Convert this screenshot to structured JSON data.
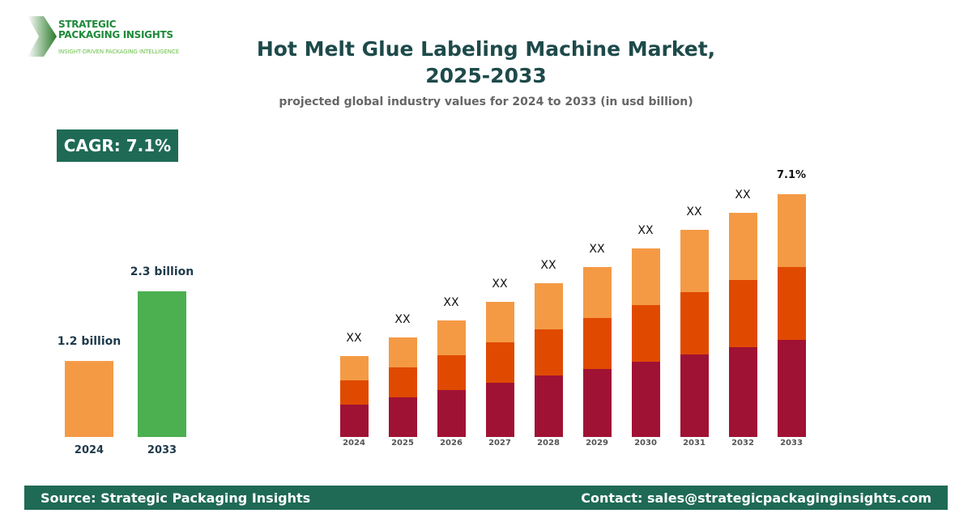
{
  "logo": {
    "line1": "STRATEGIC",
    "line2": "PACKAGING INSIGHTS",
    "tagline": "INSIGHT-DRIVEN PACKAGING INTELLIGENCE"
  },
  "header": {
    "title_line1": "Hot Melt Glue Labeling Machine Market,",
    "title_line2": "2025-2033",
    "subtitle": "projected global industry values for 2024 to 2033 (in usd billion)"
  },
  "cagr": "CAGR: 7.1%",
  "footer": {
    "source": "Source: Strategic Packaging Insights",
    "contact": "Contact: sales@strategicpackaginginsights.com"
  },
  "chart_data": [
    {
      "type": "bar",
      "categories": [
        "2024",
        "2033"
      ],
      "values": [
        1.2,
        2.3
      ],
      "data_labels": [
        "1.2 billion",
        "2.3 billion"
      ],
      "colors": [
        "#f49a45",
        "#4caf50"
      ],
      "ylim": [
        0,
        2.3
      ]
    },
    {
      "type": "bar",
      "stacked": true,
      "categories": [
        "2024",
        "2025",
        "2026",
        "2027",
        "2028",
        "2029",
        "2030",
        "2031",
        "2032",
        "2033"
      ],
      "series": [
        {
          "color": "#a01234",
          "values": [
            40,
            49,
            58,
            67,
            76,
            84,
            93,
            102,
            111,
            120
          ]
        },
        {
          "color": "#e04a00",
          "values": [
            30,
            37,
            43,
            50,
            57,
            63,
            70,
            77,
            83,
            90
          ]
        },
        {
          "color": "#f49a45",
          "values": [
            30,
            37,
            43,
            50,
            57,
            63,
            70,
            77,
            83,
            90
          ]
        }
      ],
      "data_labels": [
        "XX",
        "XX",
        "XX",
        "XX",
        "XX",
        "XX",
        "XX",
        "XX",
        "XX",
        "7.1%"
      ]
    }
  ]
}
